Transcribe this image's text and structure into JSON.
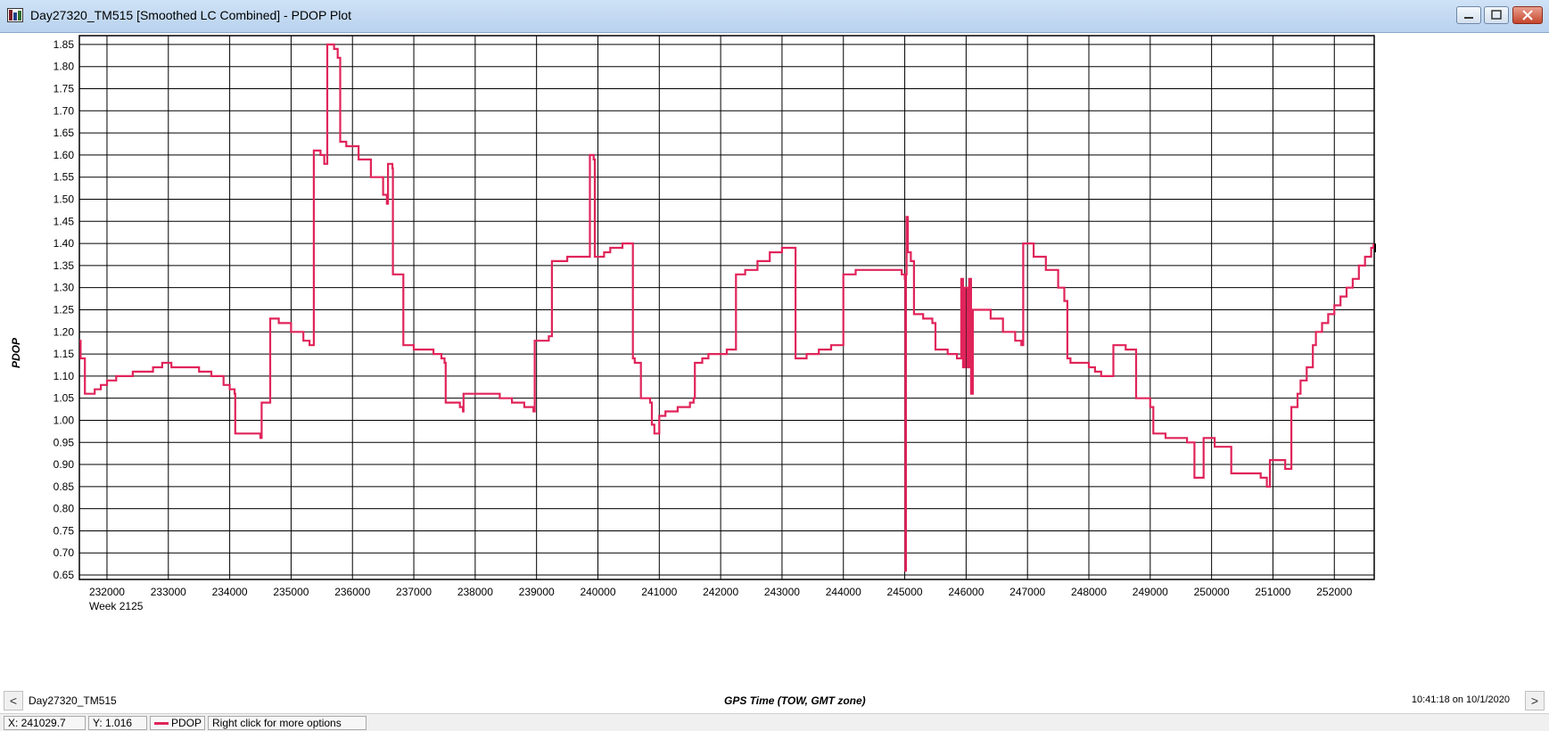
{
  "window": {
    "title": "Day27320_TM515 [Smoothed LC Combined] - PDOP Plot"
  },
  "footer": {
    "filename": "Day27320_TM515",
    "timestamp": "10:41:18 on 10/1/2020",
    "prev_label": "<",
    "next_label": ">"
  },
  "statusbar": {
    "x_readout": "X: 241029.7",
    "y_readout": "Y: 1.016",
    "legend_label": "PDOP",
    "hint": "Right click for more options"
  },
  "chart_data": {
    "type": "line",
    "title": "",
    "xlabel": "GPS Time (TOW, GMT zone)",
    "ylabel": "PDOP",
    "x_sublabel": "Week 2125",
    "xlim": [
      231550,
      252650
    ],
    "ylim": [
      0.64,
      1.87
    ],
    "x_ticks": [
      232000,
      233000,
      234000,
      235000,
      236000,
      237000,
      238000,
      239000,
      240000,
      241000,
      242000,
      243000,
      244000,
      245000,
      246000,
      247000,
      248000,
      249000,
      250000,
      251000,
      252000
    ],
    "y_ticks": [
      0.65,
      0.7,
      0.75,
      0.8,
      0.85,
      0.9,
      0.95,
      1.0,
      1.05,
      1.1,
      1.15,
      1.2,
      1.25,
      1.3,
      1.35,
      1.4,
      1.45,
      1.5,
      1.55,
      1.6,
      1.65,
      1.7,
      1.75,
      1.8,
      1.85
    ],
    "grid": true,
    "series": [
      {
        "name": "PDOP",
        "color": "#e0245a",
        "points": [
          [
            231550,
            1.18
          ],
          [
            231570,
            1.14
          ],
          [
            231620,
            1.14
          ],
          [
            231640,
            1.06
          ],
          [
            231750,
            1.06
          ],
          [
            231800,
            1.07
          ],
          [
            231900,
            1.08
          ],
          [
            232000,
            1.09
          ],
          [
            232150,
            1.1
          ],
          [
            232300,
            1.1
          ],
          [
            232420,
            1.11
          ],
          [
            232650,
            1.11
          ],
          [
            232750,
            1.12
          ],
          [
            232900,
            1.13
          ],
          [
            233050,
            1.12
          ],
          [
            233300,
            1.12
          ],
          [
            233500,
            1.11
          ],
          [
            233700,
            1.1
          ],
          [
            233900,
            1.08
          ],
          [
            234000,
            1.07
          ],
          [
            234080,
            1.06
          ],
          [
            234090,
            0.97
          ],
          [
            234500,
            0.96
          ],
          [
            234520,
            1.04
          ],
          [
            234640,
            1.04
          ],
          [
            234660,
            1.23
          ],
          [
            234800,
            1.22
          ],
          [
            235000,
            1.2
          ],
          [
            235200,
            1.18
          ],
          [
            235300,
            1.17
          ],
          [
            235350,
            1.17
          ],
          [
            235370,
            1.61
          ],
          [
            235480,
            1.6
          ],
          [
            235540,
            1.58
          ],
          [
            235580,
            1.58
          ],
          [
            235590,
            1.85
          ],
          [
            235700,
            1.84
          ],
          [
            235760,
            1.82
          ],
          [
            235800,
            1.63
          ],
          [
            235900,
            1.62
          ],
          [
            236100,
            1.59
          ],
          [
            236300,
            1.55
          ],
          [
            236500,
            1.51
          ],
          [
            236560,
            1.49
          ],
          [
            236580,
            1.58
          ],
          [
            236650,
            1.57
          ],
          [
            236660,
            1.33
          ],
          [
            236800,
            1.33
          ],
          [
            236830,
            1.17
          ],
          [
            237000,
            1.16
          ],
          [
            237200,
            1.16
          ],
          [
            237320,
            1.15
          ],
          [
            237450,
            1.14
          ],
          [
            237500,
            1.13
          ],
          [
            237520,
            1.04
          ],
          [
            237700,
            1.04
          ],
          [
            237750,
            1.03
          ],
          [
            237800,
            1.02
          ],
          [
            237810,
            1.06
          ],
          [
            238000,
            1.06
          ],
          [
            238200,
            1.06
          ],
          [
            238400,
            1.05
          ],
          [
            238600,
            1.04
          ],
          [
            238800,
            1.03
          ],
          [
            238950,
            1.02
          ],
          [
            238970,
            1.18
          ],
          [
            239200,
            1.19
          ],
          [
            239250,
            1.36
          ],
          [
            239500,
            1.37
          ],
          [
            239850,
            1.37
          ],
          [
            239870,
            1.6
          ],
          [
            239930,
            1.59
          ],
          [
            239950,
            1.37
          ],
          [
            240100,
            1.38
          ],
          [
            240200,
            1.39
          ],
          [
            240400,
            1.4
          ],
          [
            240550,
            1.4
          ],
          [
            240570,
            1.14
          ],
          [
            240600,
            1.13
          ],
          [
            240700,
            1.05
          ],
          [
            240850,
            1.04
          ],
          [
            240880,
            0.99
          ],
          [
            240920,
            0.97
          ],
          [
            241000,
            1.01
          ],
          [
            241100,
            1.02
          ],
          [
            241300,
            1.03
          ],
          [
            241500,
            1.04
          ],
          [
            241560,
            1.05
          ],
          [
            241580,
            1.13
          ],
          [
            241700,
            1.14
          ],
          [
            241800,
            1.15
          ],
          [
            242000,
            1.15
          ],
          [
            242100,
            1.16
          ],
          [
            242200,
            1.16
          ],
          [
            242250,
            1.33
          ],
          [
            242400,
            1.34
          ],
          [
            242600,
            1.36
          ],
          [
            242800,
            1.38
          ],
          [
            243000,
            1.39
          ],
          [
            243200,
            1.39
          ],
          [
            243220,
            1.14
          ],
          [
            243400,
            1.15
          ],
          [
            243600,
            1.16
          ],
          [
            243800,
            1.17
          ],
          [
            243960,
            1.17
          ],
          [
            244000,
            1.33
          ],
          [
            244200,
            1.34
          ],
          [
            244500,
            1.34
          ],
          [
            244800,
            1.34
          ],
          [
            244950,
            1.33
          ],
          [
            245000,
            1.32
          ],
          [
            245010,
            0.66
          ],
          [
            245020,
            1.33
          ],
          [
            245030,
            1.46
          ],
          [
            245050,
            1.38
          ],
          [
            245100,
            1.36
          ],
          [
            245150,
            1.24
          ],
          [
            245300,
            1.23
          ],
          [
            245450,
            1.22
          ],
          [
            245500,
            1.16
          ],
          [
            245700,
            1.15
          ],
          [
            245850,
            1.14
          ],
          [
            245900,
            1.14
          ],
          [
            245920,
            1.32
          ],
          [
            245950,
            1.12
          ],
          [
            245980,
            1.3
          ],
          [
            246020,
            1.12
          ],
          [
            246050,
            1.32
          ],
          [
            246080,
            1.06
          ],
          [
            246110,
            1.25
          ],
          [
            246150,
            1.25
          ],
          [
            246400,
            1.23
          ],
          [
            246600,
            1.2
          ],
          [
            246800,
            1.18
          ],
          [
            246900,
            1.17
          ],
          [
            246930,
            1.4
          ],
          [
            247100,
            1.37
          ],
          [
            247300,
            1.34
          ],
          [
            247500,
            1.3
          ],
          [
            247600,
            1.27
          ],
          [
            247650,
            1.14
          ],
          [
            247700,
            1.13
          ],
          [
            247900,
            1.13
          ],
          [
            248000,
            1.12
          ],
          [
            248100,
            1.11
          ],
          [
            248200,
            1.1
          ],
          [
            248380,
            1.1
          ],
          [
            248400,
            1.17
          ],
          [
            248600,
            1.16
          ],
          [
            248750,
            1.16
          ],
          [
            248770,
            1.05
          ],
          [
            248950,
            1.05
          ],
          [
            249000,
            1.03
          ],
          [
            249050,
            0.97
          ],
          [
            249250,
            0.96
          ],
          [
            249400,
            0.96
          ],
          [
            249600,
            0.95
          ],
          [
            249700,
            0.95
          ],
          [
            249720,
            0.87
          ],
          [
            249850,
            0.87
          ],
          [
            249870,
            0.96
          ],
          [
            250050,
            0.94
          ],
          [
            250300,
            0.94
          ],
          [
            250320,
            0.88
          ],
          [
            250600,
            0.88
          ],
          [
            250800,
            0.87
          ],
          [
            250900,
            0.85
          ],
          [
            250950,
            0.91
          ],
          [
            251050,
            0.91
          ],
          [
            251200,
            0.89
          ],
          [
            251300,
            1.03
          ],
          [
            251400,
            1.06
          ],
          [
            251450,
            1.09
          ],
          [
            251550,
            1.12
          ],
          [
            251650,
            1.17
          ],
          [
            251700,
            1.2
          ],
          [
            251800,
            1.22
          ],
          [
            251900,
            1.24
          ],
          [
            252000,
            1.26
          ],
          [
            252100,
            1.28
          ],
          [
            252200,
            1.3
          ],
          [
            252300,
            1.32
          ],
          [
            252400,
            1.35
          ],
          [
            252500,
            1.37
          ],
          [
            252600,
            1.39
          ],
          [
            252640,
            1.4
          ]
        ]
      }
    ]
  }
}
